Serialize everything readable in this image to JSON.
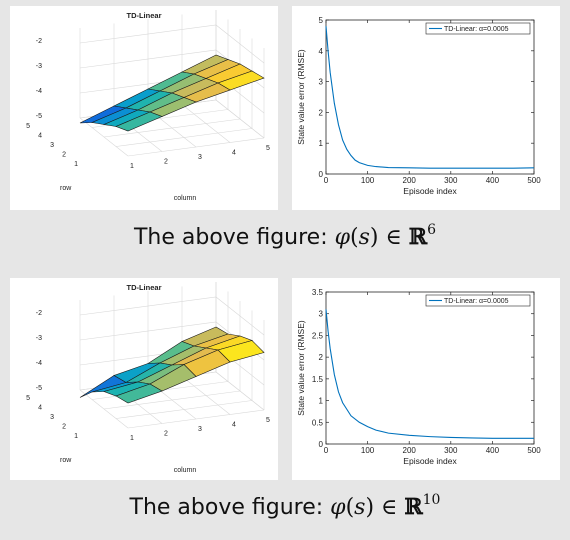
{
  "captions": [
    {
      "prefix": "The above figure:",
      "phi": "φ",
      "open": "(",
      "s": "s",
      "close": ")",
      "in": "∈",
      "R": "ℝ",
      "dim": "6"
    },
    {
      "prefix": "The above figure:",
      "phi": "φ",
      "open": "(",
      "s": "s",
      "close": ")",
      "in": "∈",
      "R": "ℝ",
      "dim": "10"
    }
  ],
  "chart_data": [
    {
      "type": "surface",
      "title": "TD-Linear",
      "xlabel": "column",
      "ylabel": "row",
      "zlim": [
        -5,
        -2
      ],
      "row_ticks": [
        "1",
        "2",
        "3",
        "4",
        "5"
      ],
      "col_ticks": [
        "1",
        "2",
        "3",
        "4",
        "5"
      ],
      "z_ticks": [
        "-2",
        "-3",
        "-4",
        "-5"
      ],
      "grid": true,
      "z": [
        [
          -4.0,
          -3.6,
          -3.2,
          -2.9,
          -2.6
        ],
        [
          -4.2,
          -3.8,
          -3.4,
          -3.0,
          -2.7
        ],
        [
          -4.5,
          -4.1,
          -3.6,
          -3.2,
          -2.8
        ],
        [
          -4.8,
          -4.4,
          -3.9,
          -3.4,
          -3.0
        ],
        [
          -5.2,
          -4.7,
          -4.2,
          -3.7,
          -3.2
        ]
      ]
    },
    {
      "type": "line",
      "xlabel": "Episode index",
      "ylabel": "State value error (RMSE)",
      "xlim": [
        0,
        500
      ],
      "ylim": [
        0,
        5
      ],
      "x_ticks": [
        "0",
        "100",
        "200",
        "300",
        "400",
        "500"
      ],
      "y_ticks": [
        "0",
        "1",
        "2",
        "3",
        "4",
        "5"
      ],
      "grid": false,
      "legend_position": "top-right",
      "series": [
        {
          "name": "TD-Linear: α=0.0005",
          "color": "#0072bd",
          "x": [
            0,
            5,
            10,
            20,
            30,
            40,
            50,
            60,
            70,
            80,
            100,
            120,
            150,
            200,
            250,
            300,
            350,
            400,
            450,
            500
          ],
          "y": [
            4.8,
            4.0,
            3.3,
            2.3,
            1.6,
            1.1,
            0.8,
            0.6,
            0.45,
            0.37,
            0.28,
            0.24,
            0.21,
            0.2,
            0.19,
            0.19,
            0.19,
            0.19,
            0.19,
            0.2
          ]
        }
      ]
    },
    {
      "type": "surface",
      "title": "TD-Linear",
      "xlabel": "column",
      "ylabel": "row",
      "zlim": [
        -5,
        -2
      ],
      "row_ticks": [
        "1",
        "2",
        "3",
        "4",
        "5"
      ],
      "col_ticks": [
        "1",
        "2",
        "3",
        "4",
        "5"
      ],
      "z_ticks": [
        "-2",
        "-3",
        "-4",
        "-5"
      ],
      "grid": true,
      "z": [
        [
          -4.0,
          -3.7,
          -3.3,
          -2.9,
          -2.7
        ],
        [
          -4.1,
          -3.8,
          -3.2,
          -2.8,
          -2.6
        ],
        [
          -4.3,
          -4.1,
          -3.6,
          -3.1,
          -2.8
        ],
        [
          -4.7,
          -4.5,
          -3.9,
          -3.4,
          -3.1
        ],
        [
          -5.3,
          -4.6,
          -4.3,
          -3.6,
          -3.2
        ]
      ]
    },
    {
      "type": "line",
      "xlabel": "Episode index",
      "ylabel": "State value error (RMSE)",
      "xlim": [
        0,
        500
      ],
      "ylim": [
        0,
        3.5
      ],
      "x_ticks": [
        "0",
        "100",
        "200",
        "300",
        "400",
        "500"
      ],
      "y_ticks": [
        "0",
        "0.5",
        "1",
        "1.5",
        "2",
        "2.5",
        "3",
        "3.5"
      ],
      "grid": false,
      "legend_position": "top-right",
      "series": [
        {
          "name": "TD-Linear: α=0.0005",
          "color": "#0072bd",
          "x": [
            0,
            5,
            10,
            20,
            30,
            40,
            50,
            60,
            80,
            100,
            120,
            150,
            200,
            250,
            300,
            350,
            400,
            450,
            500
          ],
          "y": [
            3.1,
            2.6,
            2.2,
            1.6,
            1.2,
            0.95,
            0.8,
            0.65,
            0.5,
            0.4,
            0.32,
            0.25,
            0.2,
            0.17,
            0.15,
            0.14,
            0.13,
            0.13,
            0.13
          ]
        }
      ]
    }
  ]
}
